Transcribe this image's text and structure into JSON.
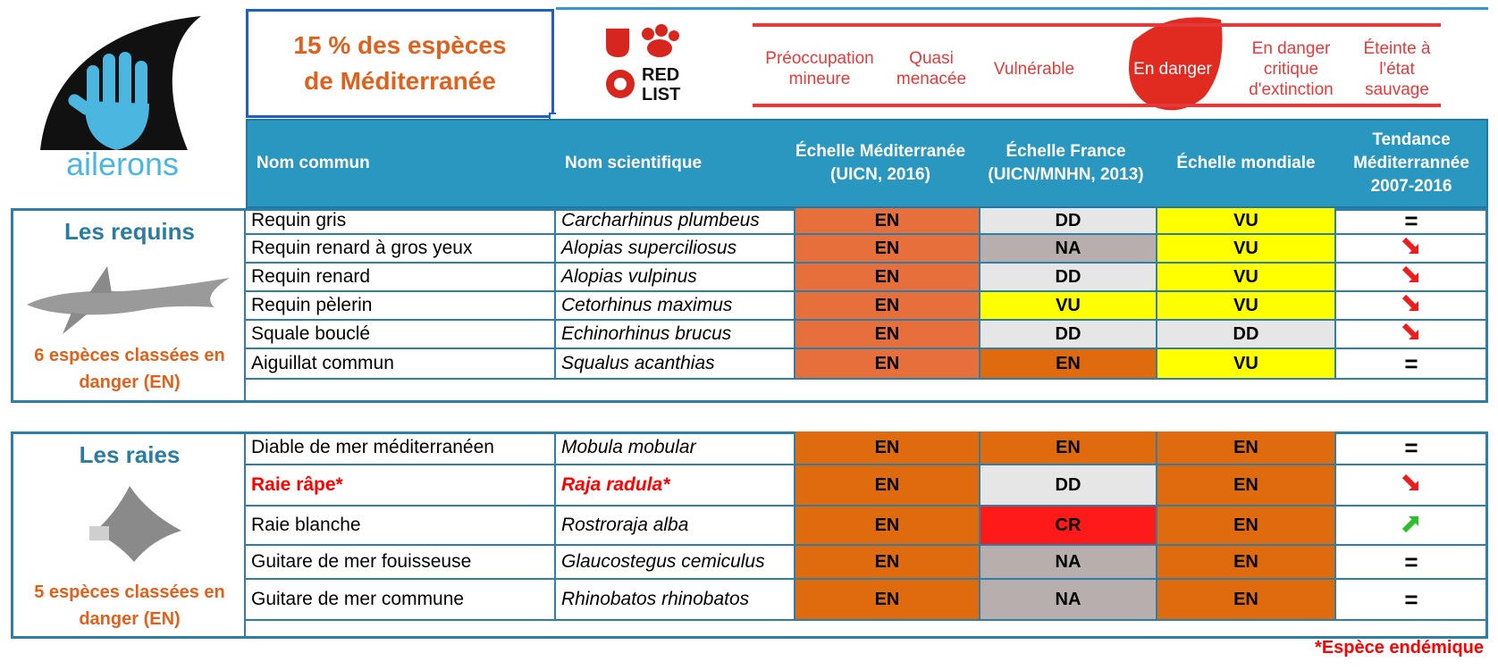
{
  "logo": {
    "text": "ailerons"
  },
  "title": {
    "line1": "15 % des espèces",
    "line2": "de Méditerranée"
  },
  "redlist": {
    "logo_text": "RED LIST",
    "scale": [
      {
        "label": "Préoccupation mineure"
      },
      {
        "label": "Quasi menacée"
      },
      {
        "label": "Vulnérable"
      },
      {
        "label": "En danger"
      },
      {
        "label": "En danger critique d'extinction"
      },
      {
        "label": "Éteinte à l'état sauvage"
      }
    ]
  },
  "headers": {
    "common": "Nom commun",
    "scientific": "Nom scientifique",
    "med": "Échelle Méditerranée (UICN, 2016)",
    "fr": "Échelle France (UICN/MNHN, 2013)",
    "world": "Échelle mondiale",
    "trend": "Tendance Méditerrannée 2007-2016"
  },
  "colors": {
    "EN": "#e66f3c",
    "EN2": "#e06b0e",
    "VU": "#ffff00",
    "DD": "#e6e6e6",
    "NA": "#b9aeae",
    "CR": "#ff1a1a",
    "down": "#ee1c1c",
    "up": "#2cc02c"
  },
  "sharks": {
    "title": "Les requins",
    "note": "6 espèces classées en danger (EN)",
    "rows": [
      {
        "common": "Requin gris",
        "sci": "Carcharhinus plumbeus",
        "med": "EN",
        "fr": "DD",
        "world": "VU",
        "trend": "="
      },
      {
        "common": "Requin renard à gros yeux",
        "sci": "Alopias superciliosus",
        "med": "EN",
        "fr": "NA",
        "world": "VU",
        "trend": "down"
      },
      {
        "common": "Requin renard",
        "sci": "Alopias vulpinus",
        "med": "EN",
        "fr": "DD",
        "world": "VU",
        "trend": "down"
      },
      {
        "common": "Requin pèlerin",
        "sci": "Cetorhinus maximus",
        "med": "EN",
        "fr": "VU",
        "world": "VU",
        "trend": "down"
      },
      {
        "common": "Squale bouclé",
        "sci": "Echinorhinus brucus",
        "med": "EN",
        "fr": "DD",
        "world": "DD",
        "trend": "down"
      },
      {
        "common": "Aiguillat commun",
        "sci": "Squalus acanthias",
        "med": "EN",
        "fr": "EN",
        "world": "VU",
        "trend": "="
      }
    ]
  },
  "rays": {
    "title": "Les raies",
    "note": "5 espèces classées en danger (EN)",
    "rows": [
      {
        "common": "Diable de mer méditerranéen",
        "sci": "Mobula mobular",
        "med": "EN",
        "fr": "EN",
        "world": "EN",
        "trend": "="
      },
      {
        "common": "Raie râpe*",
        "sci": "Raja radula*",
        "med": "EN",
        "fr": "DD",
        "world": "EN",
        "trend": "down",
        "endemic": true
      },
      {
        "common": "Raie blanche",
        "sci": "Rostroraja alba",
        "med": "EN",
        "fr": "CR",
        "world": "EN",
        "trend": "up"
      },
      {
        "common": "Guitare de mer fouisseuse",
        "sci": "Glaucostegus cemiculus",
        "med": "EN",
        "fr": "NA",
        "world": "EN",
        "trend": "="
      },
      {
        "common": "Guitare de mer commune",
        "sci": "Rhinobatos rhinobatos",
        "med": "EN",
        "fr": "NA",
        "world": "EN",
        "trend": "="
      }
    ]
  },
  "footnote": "*Espèce endémique"
}
